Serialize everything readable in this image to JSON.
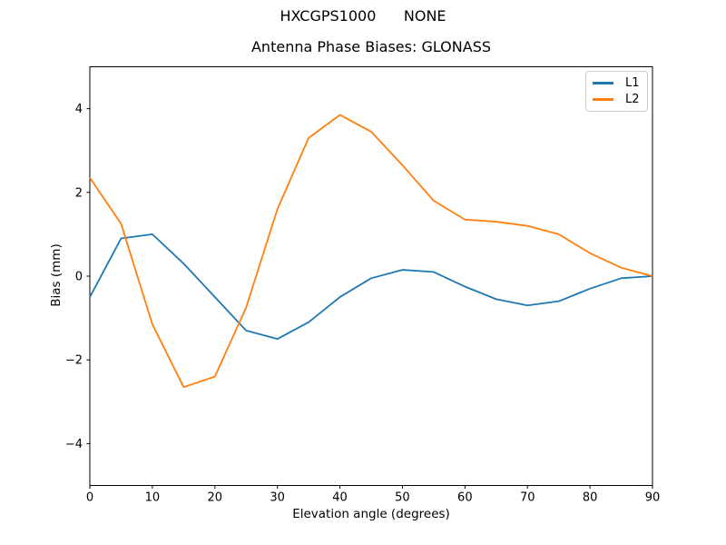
{
  "figure": {
    "suptitle": "HXCGPS1000      NONE"
  },
  "chart_data": {
    "type": "line",
    "title": "Antenna Phase Biases: GLONASS",
    "xlabel": "Elevation angle (degrees)",
    "ylabel": "Bias (mm)",
    "xlim": [
      0,
      90
    ],
    "ylim": [
      -5,
      5
    ],
    "x_ticks": [
      0,
      10,
      20,
      30,
      40,
      50,
      60,
      70,
      80,
      90
    ],
    "y_ticks": [
      -4,
      -2,
      0,
      2,
      4
    ],
    "y_tick_labels": [
      "−4",
      "−2",
      "0",
      "2",
      "4"
    ],
    "grid": false,
    "legend_position": "upper right",
    "x": [
      0,
      5,
      10,
      15,
      20,
      25,
      30,
      35,
      40,
      45,
      50,
      55,
      60,
      65,
      70,
      75,
      80,
      85,
      90
    ],
    "series": [
      {
        "name": "L1",
        "color": "#1f77b4",
        "values": [
          -0.5,
          0.9,
          1.0,
          0.3,
          -0.5,
          -1.3,
          -1.5,
          -1.1,
          -0.5,
          -0.05,
          0.15,
          0.1,
          -0.25,
          -0.55,
          -0.7,
          -0.6,
          -0.3,
          -0.05,
          0.0
        ]
      },
      {
        "name": "L2",
        "color": "#ff7f0e",
        "values": [
          2.35,
          1.25,
          -1.15,
          -2.65,
          -2.4,
          -0.75,
          1.6,
          3.3,
          3.85,
          3.45,
          2.65,
          1.8,
          1.35,
          1.3,
          1.2,
          1.0,
          0.55,
          0.2,
          0.0
        ]
      }
    ]
  }
}
